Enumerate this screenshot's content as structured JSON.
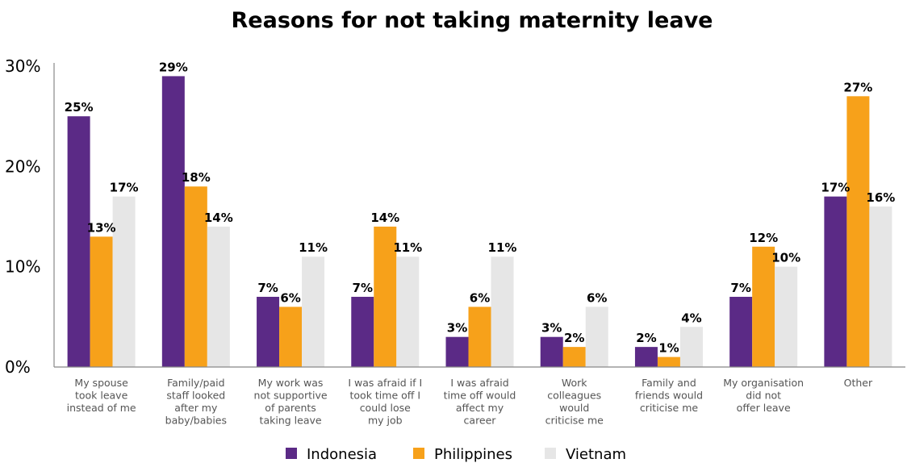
{
  "chart_data": {
    "type": "bar",
    "title": "Reasons for not taking maternity leave",
    "xlabel": "",
    "ylabel": "",
    "ylim": [
      0,
      30
    ],
    "yticks": [
      "0%",
      "10%",
      "20%",
      "30%"
    ],
    "grid": false,
    "legend_position": "bottom",
    "categories": [
      [
        "My spouse",
        "took leave",
        "instead of me"
      ],
      [
        "Family/paid",
        "staff looked",
        "after my",
        "baby/babies"
      ],
      [
        "My work was",
        "not supportive",
        "of parents",
        "taking leave"
      ],
      [
        "I was afraid if I",
        "took time off I",
        "could lose",
        "my job"
      ],
      [
        "I was afraid",
        "time off would",
        "affect my",
        "career"
      ],
      [
        "Work",
        "colleagues",
        "would",
        "criticise me"
      ],
      [
        "Family and",
        "friends would",
        "criticise me"
      ],
      [
        "My organisation",
        "did not",
        "offer leave"
      ],
      [
        "Other"
      ]
    ],
    "series": [
      {
        "name": "Indonesia",
        "color": "#5b2a86",
        "values": [
          25,
          29,
          7,
          7,
          3,
          3,
          2,
          7,
          17
        ],
        "labels": [
          "25%",
          "29%",
          "7%",
          "7%",
          "3%",
          "3%",
          "2%",
          "7%",
          "17%"
        ]
      },
      {
        "name": "Philippines",
        "color": "#f7a11a",
        "values": [
          13,
          18,
          6,
          14,
          6,
          2,
          1,
          12,
          27
        ],
        "labels": [
          "13%",
          "18%",
          "6%",
          "14%",
          "6%",
          "2%",
          "1%",
          "12%",
          "27%"
        ]
      },
      {
        "name": "Vietnam",
        "color": "#e6e6e6",
        "values": [
          17,
          14,
          11,
          11,
          11,
          6,
          4,
          10,
          16
        ],
        "labels": [
          "17%",
          "14%",
          "11%",
          "11%",
          "11%",
          "6%",
          "4%",
          "10%",
          "16%"
        ]
      }
    ]
  }
}
